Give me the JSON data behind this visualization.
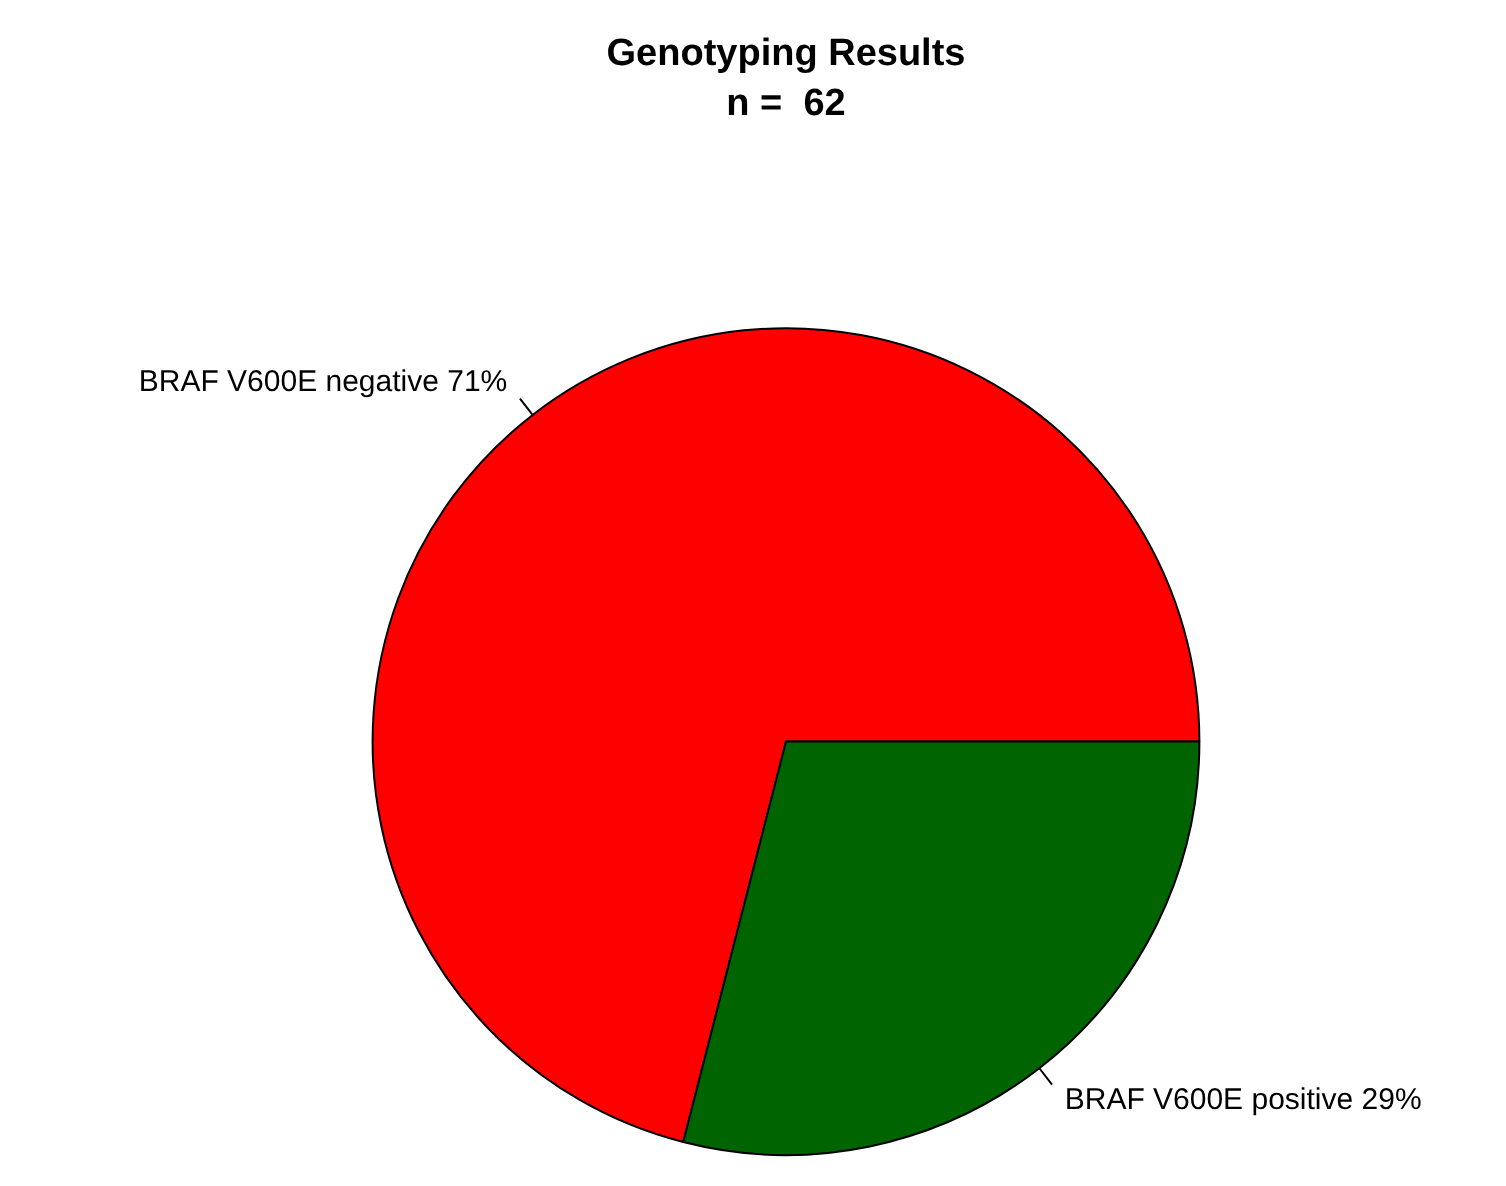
{
  "chart_data": {
    "type": "pie",
    "title": "Genotyping Results",
    "subtitle": "n =  62",
    "categories": [
      "BRAF V600E negative 71%",
      "BRAF V600E positive 29%"
    ],
    "values": [
      71,
      29
    ],
    "colors": [
      "#ff0000",
      "#006400"
    ],
    "legend": false
  }
}
